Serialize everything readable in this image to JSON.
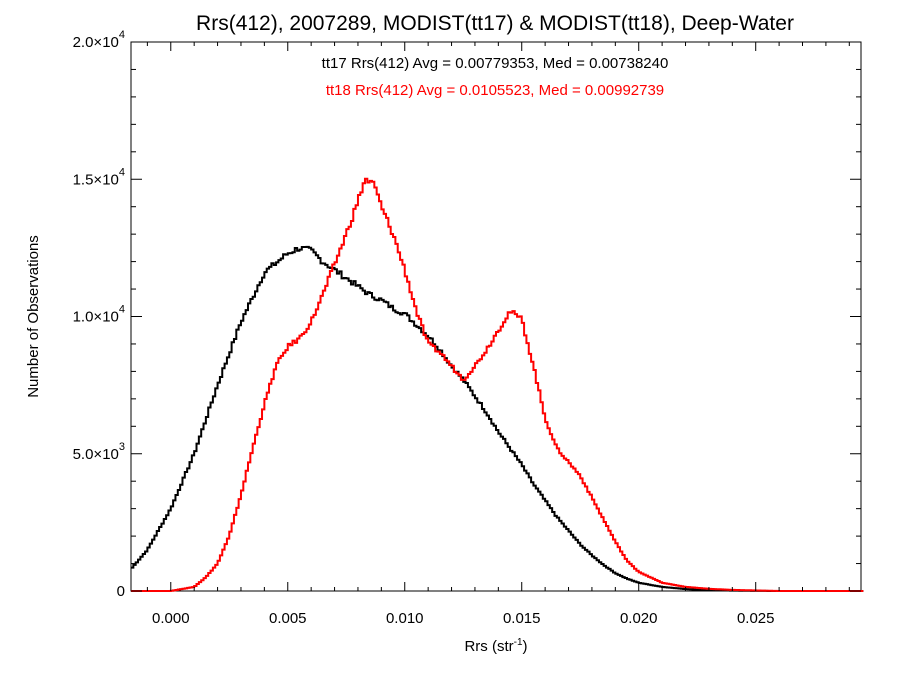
{
  "chart_data": {
    "type": "line",
    "title": "Rrs(412), 2007289, MODIST(tt17) & MODIST(tt18), Deep-Water",
    "xlabel": "Rrs (str",
    "xlabel_exponent": "-1",
    "xlabel_suffix": ")",
    "ylabel": "Number of Observations",
    "xlim": [
      -0.0017,
      0.0295
    ],
    "ylim": [
      0,
      20000
    ],
    "x_ticks": [
      {
        "value": 0.0,
        "label": "0.000"
      },
      {
        "value": 0.005,
        "label": "0.005"
      },
      {
        "value": 0.01,
        "label": "0.010"
      },
      {
        "value": 0.015,
        "label": "0.015"
      },
      {
        "value": 0.02,
        "label": "0.020"
      },
      {
        "value": 0.025,
        "label": "0.025"
      }
    ],
    "y_ticks": [
      {
        "value": 0,
        "mantissa": "0",
        "exponent": ""
      },
      {
        "value": 5000,
        "mantissa": "5.0×10",
        "exponent": "3"
      },
      {
        "value": 10000,
        "mantissa": "1.0×10",
        "exponent": "4"
      },
      {
        "value": 15000,
        "mantissa": "1.5×10",
        "exponent": "4"
      },
      {
        "value": 20000,
        "mantissa": "2.0×10",
        "exponent": "4"
      }
    ],
    "annotations": [
      {
        "text": "tt17 Rrs(412) Avg = 0.00779353, Med = 0.00738240",
        "color": "#000000"
      },
      {
        "text": "tt18 Rrs(412) Avg = 0.0105523, Med = 0.00992739",
        "color": "#ff0000"
      }
    ],
    "grid": false,
    "series": [
      {
        "color": "#000000",
        "x": [
          -0.0017,
          -0.001,
          0.0,
          0.001,
          0.002,
          0.003,
          0.004,
          0.005,
          0.0055,
          0.006,
          0.0065,
          0.007,
          0.0075,
          0.008,
          0.0085,
          0.009,
          0.0095,
          0.01,
          0.0105,
          0.011,
          0.0115,
          0.012,
          0.0125,
          0.013,
          0.0135,
          0.014,
          0.0145,
          0.015,
          0.0155,
          0.016,
          0.0165,
          0.017,
          0.0175,
          0.018,
          0.0185,
          0.019,
          0.0195,
          0.02,
          0.021,
          0.022,
          0.023,
          0.024,
          0.025,
          0.026,
          0.027,
          0.0295
        ],
        "y": [
          800,
          1500,
          3000,
          5000,
          7500,
          9800,
          11600,
          12300,
          12500,
          12400,
          12000,
          11700,
          11400,
          11100,
          10800,
          10600,
          10300,
          10100,
          9700,
          9300,
          8800,
          8200,
          7700,
          7100,
          6500,
          5800,
          5200,
          4600,
          3900,
          3300,
          2700,
          2200,
          1700,
          1300,
          950,
          650,
          450,
          300,
          150,
          70,
          30,
          15,
          5,
          0,
          0,
          0
        ]
      },
      {
        "color": "#ff0000",
        "x": [
          -0.0017,
          0.0,
          0.001,
          0.0015,
          0.002,
          0.0025,
          0.003,
          0.0035,
          0.004,
          0.0045,
          0.005,
          0.0055,
          0.006,
          0.0065,
          0.007,
          0.0075,
          0.008,
          0.0083,
          0.0087,
          0.009,
          0.0095,
          0.01,
          0.0105,
          0.011,
          0.0115,
          0.012,
          0.0125,
          0.013,
          0.0135,
          0.014,
          0.0145,
          0.015,
          0.0155,
          0.016,
          0.0165,
          0.017,
          0.0175,
          0.018,
          0.0185,
          0.019,
          0.0195,
          0.02,
          0.021,
          0.022,
          0.023,
          0.024,
          0.025,
          0.026,
          0.0295
        ],
        "y": [
          0,
          0,
          150,
          500,
          1000,
          2000,
          3500,
          5200,
          6800,
          8200,
          8900,
          9200,
          9800,
          10800,
          11900,
          13000,
          14200,
          15000,
          14800,
          14000,
          13000,
          11700,
          10200,
          9000,
          8700,
          8200,
          7700,
          8200,
          8800,
          9500,
          10200,
          9900,
          8200,
          6300,
          5200,
          4700,
          4200,
          3400,
          2600,
          1800,
          1100,
          700,
          300,
          150,
          80,
          40,
          20,
          0,
          0
        ]
      }
    ]
  }
}
